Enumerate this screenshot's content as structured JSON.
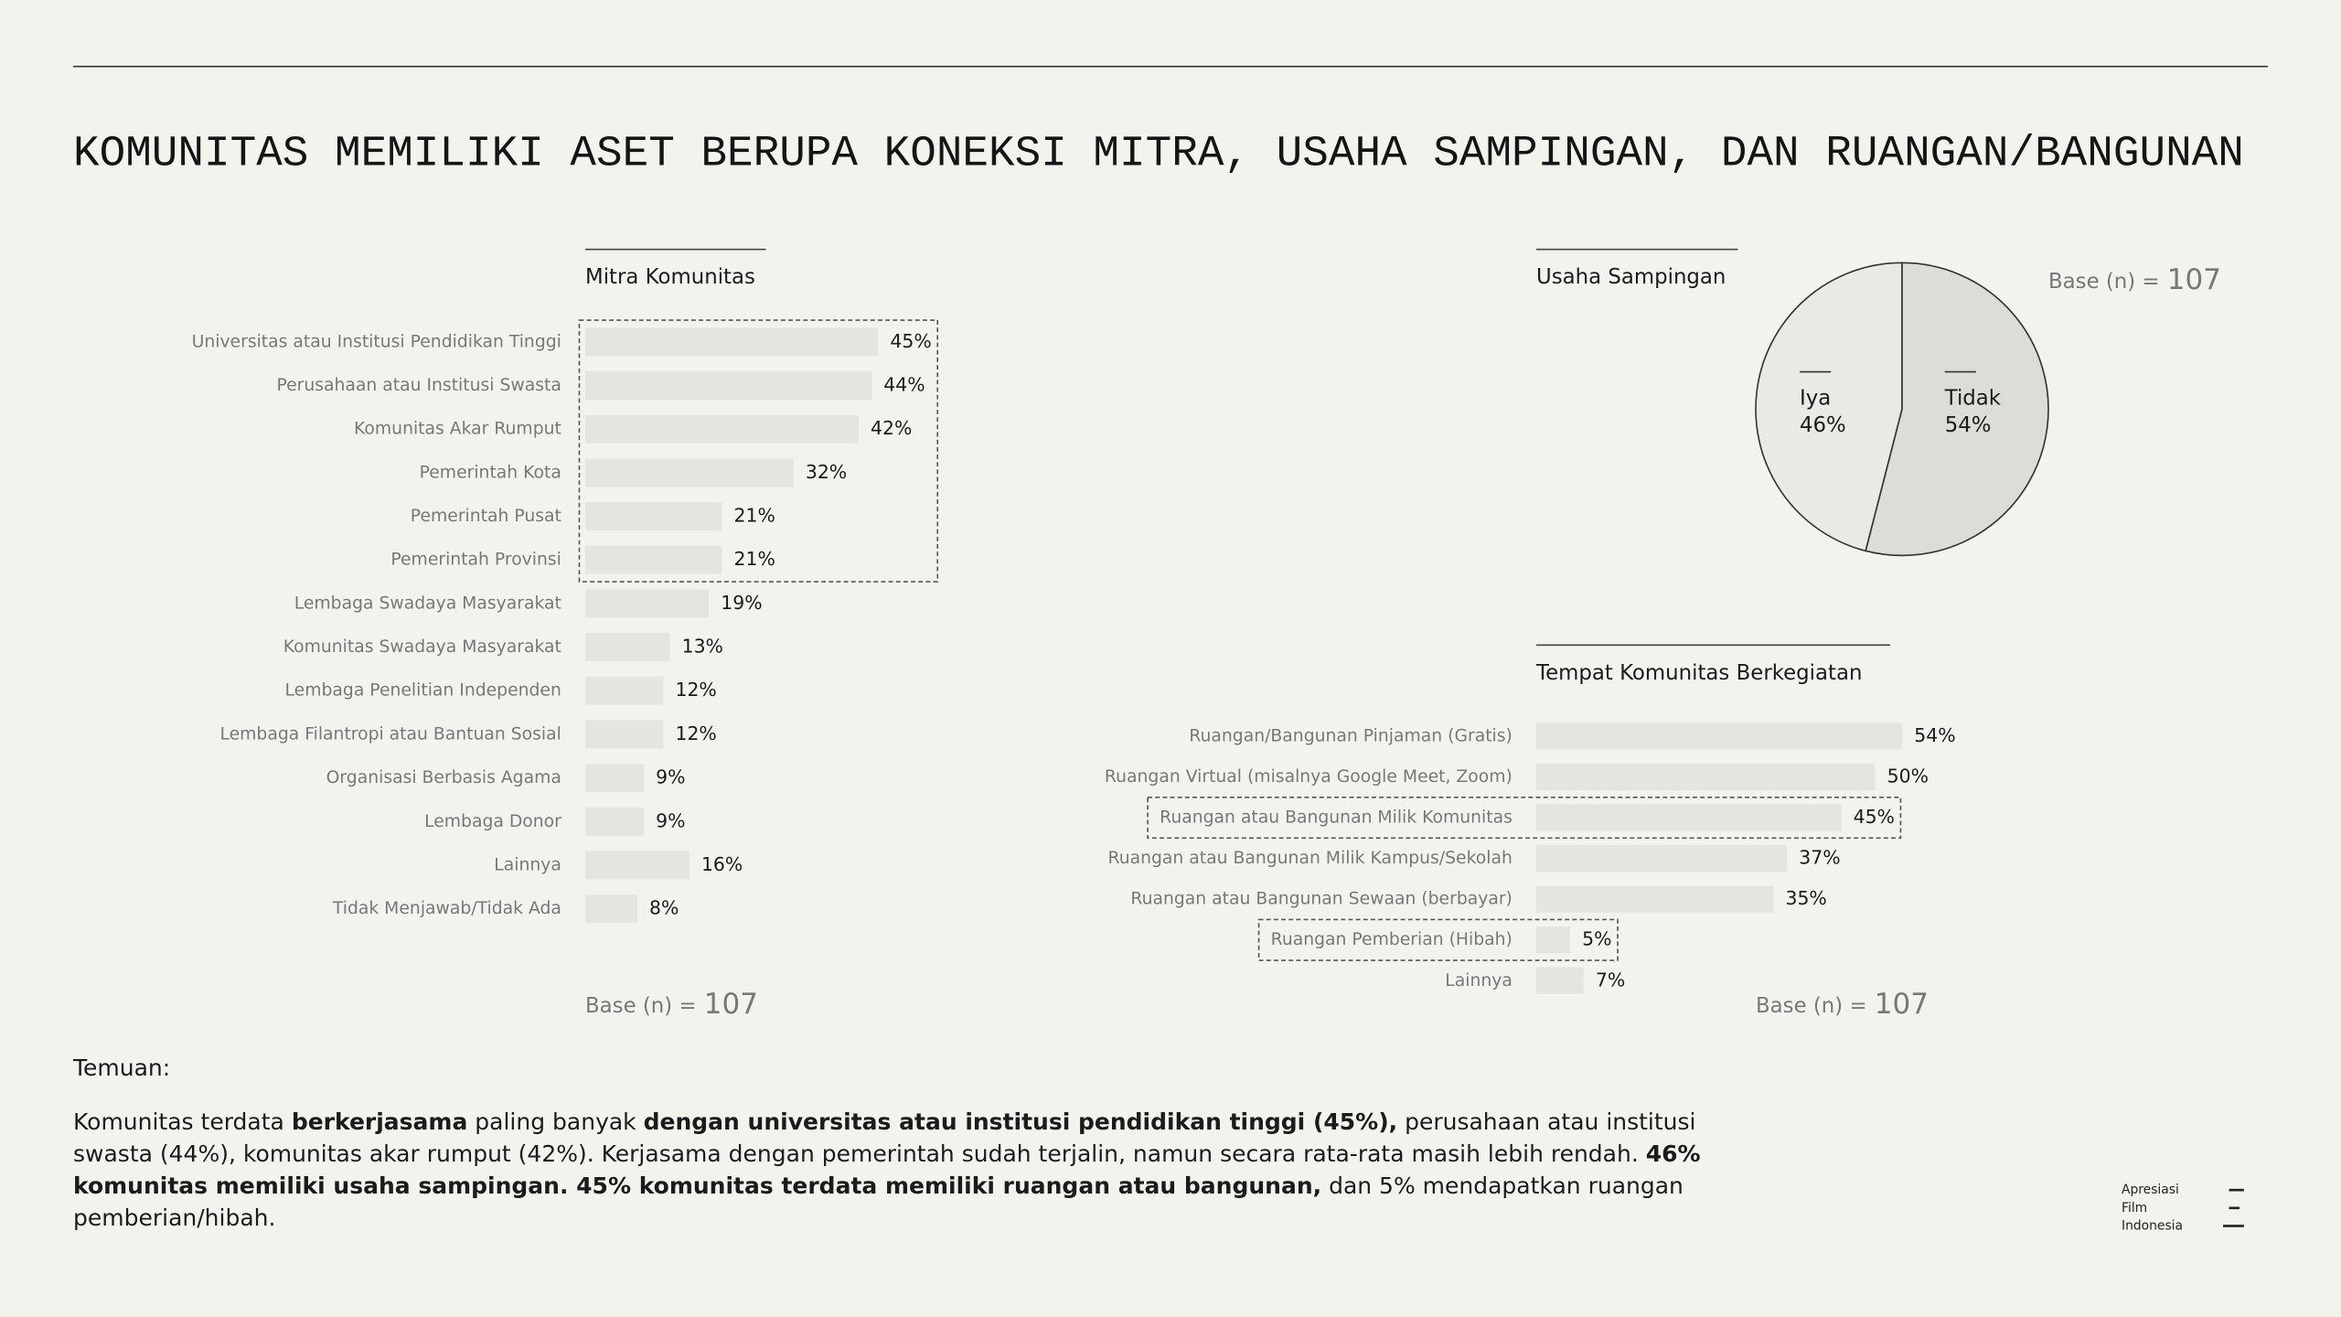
{
  "header": {
    "title": "KOMUNITAS MEMILIKI ASET BERUPA KONEKSI MITRA, USAHA SAMPINGAN, DAN RUANGAN/BANGUNAN"
  },
  "chart_data": [
    {
      "type": "bar",
      "orientation": "horizontal",
      "title": "Mitra Komunitas",
      "categories": [
        "Universitas atau Institusi Pendidikan Tinggi",
        "Perusahaan atau Institusi Swasta",
        "Komunitas Akar Rumput",
        "Pemerintah Kota",
        "Pemerintah Pusat",
        "Pemerintah Provinsi",
        "Lembaga Swadaya Masyarakat",
        "Komunitas Swadaya Masyarakat",
        "Lembaga Penelitian Independen",
        "Lembaga Filantropi atau Bantuan Sosial",
        "Organisasi Berbasis Agama",
        "Lembaga Donor",
        "Lainnya",
        "Tidak Menjawab/Tidak Ada"
      ],
      "values": [
        45,
        44,
        42,
        32,
        21,
        21,
        19,
        13,
        12,
        12,
        9,
        9,
        16,
        8
      ],
      "value_labels": [
        "45%",
        "44%",
        "42%",
        "32%",
        "21%",
        "21%",
        "19%",
        "13%",
        "12%",
        "12%",
        "9%",
        "9%",
        "16%",
        "8%"
      ],
      "color": "#e4e4e1",
      "base_label": "Base (n) =",
      "base_n": 107
    },
    {
      "type": "pie",
      "title": "Usaha Sampingan",
      "categories": [
        "Iya",
        "Tidak"
      ],
      "values": [
        46,
        54
      ],
      "value_labels": [
        "46%",
        "54%"
      ],
      "colors": [
        "#e9e9e6",
        "#dcdcd9"
      ],
      "base_label": "Base (n) =",
      "base_n": 107
    },
    {
      "type": "bar",
      "orientation": "horizontal",
      "title": "Tempat Komunitas Berkegiatan",
      "categories": [
        "Ruangan/Bangunan Pinjaman (Gratis)",
        "Ruangan Virtual (misalnya Google Meet, Zoom)",
        "Ruangan atau Bangunan Milik Komunitas",
        "Ruangan atau Bangunan Milik Kampus/Sekolah",
        "Ruangan atau Bangunan Sewaan (berbayar)",
        "Ruangan Pemberian (Hibah)",
        "Lainnya"
      ],
      "values": [
        54,
        50,
        45,
        37,
        35,
        5,
        7
      ],
      "value_labels": [
        "54%",
        "50%",
        "45%",
        "37%",
        "35%",
        "5%",
        "7%"
      ],
      "color": "#e4e4e1",
      "base_label": "Base (n) =",
      "base_n": 107
    }
  ],
  "findings": {
    "heading": "Temuan:",
    "paragraph": [
      {
        "text": "Komunitas terdata ",
        "bold": false
      },
      {
        "text": "berkerjasama",
        "bold": true
      },
      {
        "text": " paling banyak ",
        "bold": false
      },
      {
        "text": "dengan universitas atau institusi pendidikan tinggi (45%),",
        "bold": true
      },
      {
        "text": " perusahaan atau institusi swasta (44%), komunitas akar rumput (42%). Kerjasama dengan pemerintah sudah terjalin, namun secara rata-rata masih lebih rendah. ",
        "bold": false
      },
      {
        "text": "46% komunitas memiliki usaha sampingan. 45% komunitas terdata memiliki ruangan atau bangunan,",
        "bold": true
      },
      {
        "text": " dan 5% mendapatkan ruangan pemberian/hibah.",
        "bold": false
      }
    ]
  },
  "logo": {
    "lines": [
      "Apresiasi",
      "Film",
      "Indonesia"
    ]
  }
}
